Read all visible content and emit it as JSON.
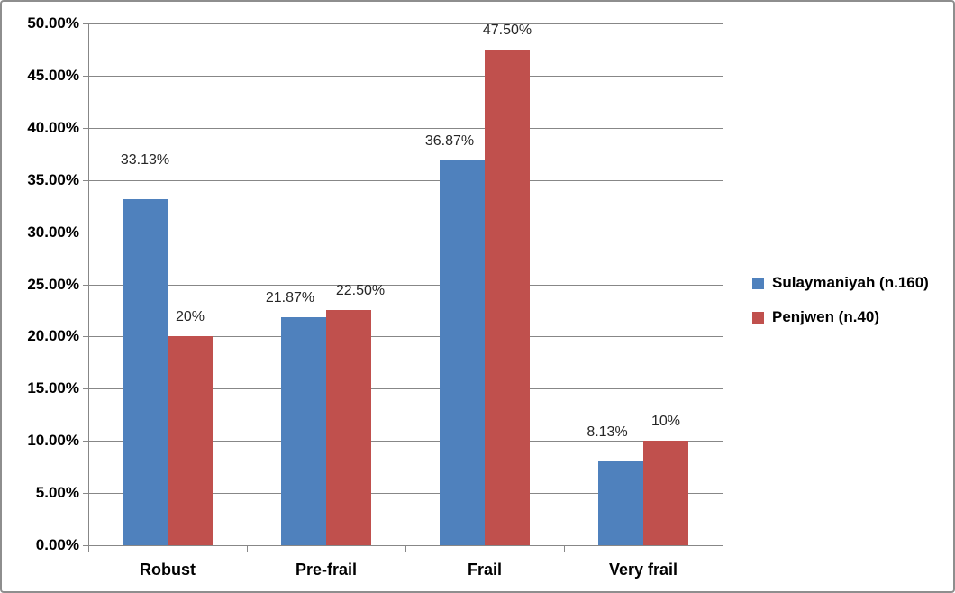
{
  "chart_data": {
    "type": "bar",
    "title": "",
    "xlabel": "",
    "ylabel": "",
    "categories": [
      "Robust",
      "Pre-frail",
      "Frail",
      "Very frail"
    ],
    "series": [
      {
        "name": "Sulaymaniyah (n.160)",
        "color": "#4F81BD",
        "values": [
          33.13,
          21.87,
          36.87,
          8.13
        ],
        "labels": [
          "33.13%",
          "21.87%",
          "36.87%",
          "8.13%"
        ]
      },
      {
        "name": "Penjwen (n.40)",
        "color": "#C0504D",
        "values": [
          20,
          22.5,
          47.5,
          10
        ],
        "labels": [
          "20%",
          "22.50%",
          "47.50%",
          "10%"
        ]
      }
    ],
    "ylim": [
      0,
      50
    ],
    "ytick_step": 5,
    "yticks": [
      "0.00%",
      "5.00%",
      "10.00%",
      "15.00%",
      "20.00%",
      "25.00%",
      "30.00%",
      "35.00%",
      "40.00%",
      "45.00%",
      "50.00%"
    ],
    "grid": true,
    "legend_position": "right",
    "colors": {
      "gridline": "#878787",
      "axis": "#878787",
      "frame_border": "#8E8E8E",
      "data_label_text": "#262626"
    }
  }
}
